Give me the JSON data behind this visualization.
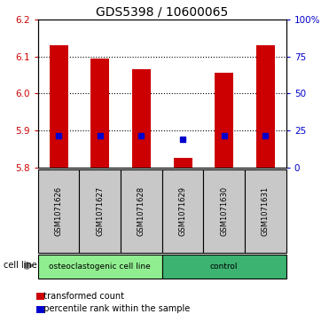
{
  "title": "GDS5398 / 10600065",
  "samples": [
    "GSM1071626",
    "GSM1071627",
    "GSM1071628",
    "GSM1071629",
    "GSM1071630",
    "GSM1071631"
  ],
  "red_values": [
    6.13,
    6.095,
    6.065,
    5.825,
    6.055,
    6.13
  ],
  "blue_values": [
    5.885,
    5.885,
    5.885,
    5.875,
    5.885,
    5.885
  ],
  "y_min": 5.8,
  "y_max": 6.2,
  "y_ticks_left": [
    5.8,
    5.9,
    6.0,
    6.1,
    6.2
  ],
  "y_ticks_right": [
    0,
    25,
    50,
    75,
    100
  ],
  "y_ticks_right_labels": [
    "0",
    "25",
    "50",
    "75",
    "100%"
  ],
  "grid_lines": [
    5.9,
    6.0,
    6.1
  ],
  "groups": [
    {
      "label": "osteoclastogenic cell line",
      "start": 0,
      "end": 3,
      "color": "#90EE90"
    },
    {
      "label": "control",
      "start": 3,
      "end": 6,
      "color": "#3CB371"
    }
  ],
  "group_label_prefix": "cell line",
  "bar_color": "#CC0000",
  "marker_color": "#0000CC",
  "bar_width": 0.45,
  "label_box_color": "#C8C8C8",
  "legend_red_label": "transformed count",
  "legend_blue_label": "percentile rank within the sample",
  "title_fontsize": 10,
  "tick_fontsize": 7.5,
  "left_tick_color": "#CC0000",
  "right_tick_color": "#0000CC"
}
